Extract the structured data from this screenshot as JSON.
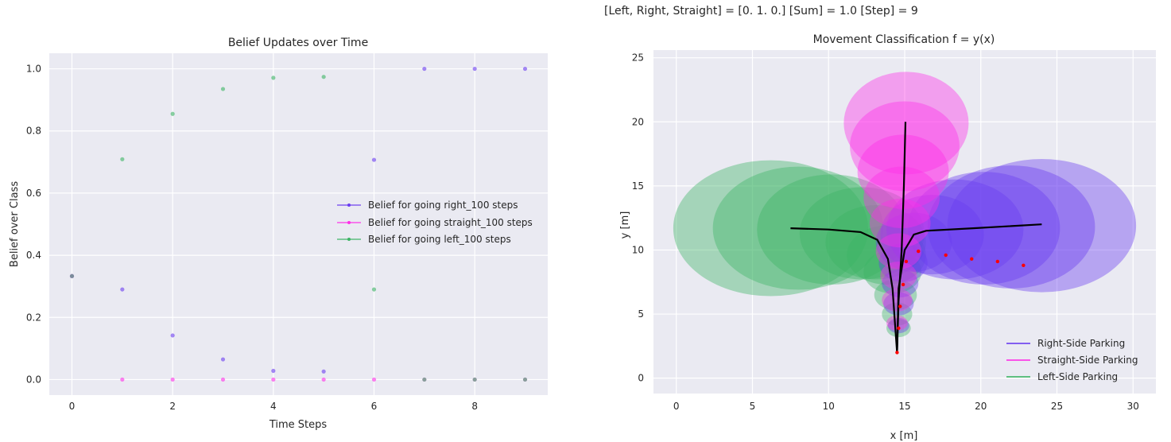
{
  "header": {
    "text": "[Left, Right, Straight] = [0. 1. 0.]   [Sum] = 1.0   [Step] = 9"
  },
  "colors": {
    "background": "#eaeaf2",
    "grid": "#ffffff",
    "right": "#6a3cf0",
    "straight": "#ff2ee8",
    "left": "#3cb464",
    "track": "#000000",
    "points": "#ff0000"
  },
  "chart_data": [
    {
      "type": "scatter",
      "title": "Belief Updates over Time",
      "xlabel": "Time Steps",
      "ylabel": "Belief over Class",
      "xlim": [
        -0.45,
        9.45
      ],
      "ylim": [
        -0.05,
        1.05
      ],
      "xticks": [
        0,
        2,
        4,
        6,
        8
      ],
      "yticks": [
        0.0,
        0.2,
        0.4,
        0.6,
        0.8,
        1.0
      ],
      "grid": true,
      "legend": "center-right",
      "series": [
        {
          "name": "Belief for going right_100 steps",
          "color": "#6a3cf0",
          "x": [
            0,
            1,
            2,
            3,
            4,
            5,
            6,
            7,
            8,
            9
          ],
          "y": [
            0.333,
            0.29,
            0.142,
            0.065,
            0.028,
            0.026,
            0.707,
            1.0,
            1.0,
            1.0
          ]
        },
        {
          "name": "Belief for going straight_100 steps",
          "color": "#ff2ee8",
          "x": [
            0,
            1,
            2,
            3,
            4,
            5,
            6,
            7,
            8,
            9
          ],
          "y": [
            0.333,
            0.0,
            0.0,
            0.0,
            0.0,
            0.0,
            0.0,
            0.0,
            0.0,
            0.0
          ]
        },
        {
          "name": "Belief for going left_100 steps",
          "color": "#3cb464",
          "x": [
            0,
            1,
            2,
            3,
            4,
            5,
            6,
            7,
            8,
            9
          ],
          "y": [
            0.333,
            0.709,
            0.855,
            0.935,
            0.971,
            0.974,
            0.29,
            0.0,
            0.0,
            0.0
          ]
        }
      ]
    },
    {
      "type": "scatter",
      "title": "Movement Classification f = y(x)",
      "xlabel": "x [m]",
      "ylabel": "y [m]",
      "xlim": [
        -1.5,
        31.5
      ],
      "ylim": [
        -1.2,
        25.6
      ],
      "xticks": [
        0,
        5,
        10,
        15,
        20,
        25,
        30
      ],
      "yticks": [
        0,
        5,
        10,
        15,
        20,
        25
      ],
      "grid": true,
      "legend": "bottom-right",
      "series": [
        {
          "name": "Right-Side Parking",
          "color": "#6a3cf0",
          "path": [
            [
              14.5,
              2
            ],
            [
              14.6,
              7
            ],
            [
              15.0,
              10
            ],
            [
              15.6,
              11.2
            ],
            [
              16.4,
              11.5
            ],
            [
              19.5,
              11.7
            ],
            [
              24.0,
              12.0
            ]
          ],
          "ellipses": [
            [
              24.0,
              11.9,
              6.2,
              5.2
            ],
            [
              22.0,
              11.8,
              5.5,
              4.8
            ],
            [
              20.2,
              11.7,
              5.0,
              4.4
            ],
            [
              18.3,
              11.6,
              4.5,
              3.9
            ],
            [
              16.8,
              11.2,
              3.4,
              3.1
            ],
            [
              15.6,
              10.6,
              2.5,
              2.3
            ],
            [
              14.9,
              9.0,
              1.6,
              1.5
            ],
            [
              14.7,
              7.4,
              1.2,
              1.1
            ],
            [
              14.6,
              5.8,
              1.0,
              0.9
            ],
            [
              14.6,
              4.1,
              0.7,
              0.6
            ]
          ]
        },
        {
          "name": "Straight-Side Parking",
          "color": "#ff2ee8",
          "path": [
            [
              14.5,
              2
            ],
            [
              14.6,
              6
            ],
            [
              14.8,
              10
            ],
            [
              14.95,
              15
            ],
            [
              15.05,
              20
            ]
          ],
          "ellipses": [
            [
              15.1,
              19.9,
              4.1,
              4.0
            ],
            [
              15.0,
              18.1,
              3.6,
              3.5
            ],
            [
              14.9,
              16.1,
              3.0,
              2.9
            ],
            [
              14.8,
              14.1,
              2.5,
              2.4
            ],
            [
              14.7,
              12.1,
              2.0,
              1.9
            ],
            [
              14.6,
              9.9,
              1.5,
              1.4
            ],
            [
              14.6,
              8.0,
              1.2,
              1.1
            ],
            [
              14.5,
              6.1,
              1.0,
              0.9
            ],
            [
              14.5,
              4.3,
              0.7,
              0.6
            ]
          ]
        },
        {
          "name": "Left-Side Parking",
          "color": "#3cb464",
          "path": [
            [
              14.5,
              2
            ],
            [
              14.2,
              7
            ],
            [
              13.9,
              9.3
            ],
            [
              13.2,
              10.8
            ],
            [
              12.1,
              11.4
            ],
            [
              10.0,
              11.6
            ],
            [
              7.5,
              11.7
            ]
          ],
          "ellipses": [
            [
              6.2,
              11.7,
              6.4,
              5.3
            ],
            [
              8.0,
              11.7,
              5.6,
              4.8
            ],
            [
              10.2,
              11.6,
              4.9,
              4.3
            ],
            [
              12.2,
              11.3,
              4.1,
              3.6
            ],
            [
              13.1,
              10.6,
              3.3,
              2.9
            ],
            [
              13.8,
              9.6,
              2.6,
              2.3
            ],
            [
              14.2,
              8.3,
              1.9,
              1.7
            ],
            [
              14.4,
              6.5,
              1.4,
              1.2
            ],
            [
              14.5,
              5.0,
              1.0,
              0.9
            ],
            [
              14.6,
              3.9,
              0.8,
              0.7
            ]
          ]
        },
        {
          "name": "",
          "color": "#ff0000",
          "points": [
            [
              14.5,
              2.0
            ],
            [
              14.6,
              3.9
            ],
            [
              14.7,
              5.6
            ],
            [
              14.9,
              7.3
            ],
            [
              15.1,
              9.1
            ],
            [
              15.9,
              9.9
            ],
            [
              17.7,
              9.6
            ],
            [
              19.4,
              9.3
            ],
            [
              21.1,
              9.1
            ],
            [
              22.8,
              8.8
            ]
          ]
        }
      ]
    }
  ]
}
